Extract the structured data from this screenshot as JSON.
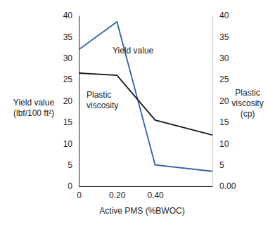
{
  "chart_data": {
    "type": "line",
    "xlabel": "Active PMS (%BWOC)",
    "ylabel": [
      "Yield value",
      "(lbf/100 ft²)"
    ],
    "y2label": [
      "Plastic",
      "viscosity",
      "(cp)"
    ],
    "x": [
      0,
      0.2,
      0.4,
      0.7
    ],
    "xlim": [
      0,
      0.7
    ],
    "xticks": [
      {
        "value": 0,
        "label": "0"
      },
      {
        "value": 0.2,
        "label": "0.20"
      },
      {
        "value": 0.4,
        "label": "0.40"
      }
    ],
    "ylim": [
      0,
      40
    ],
    "yticks": [
      0,
      5,
      10,
      15,
      20,
      25,
      30,
      35,
      40
    ],
    "y2lim": [
      0,
      40
    ],
    "y2ticks": [
      {
        "value": 0,
        "label": "0.00"
      },
      5,
      10,
      15,
      20,
      25,
      30,
      35,
      40
    ],
    "series": [
      {
        "name": "Yield value",
        "color": "#2f5fa8",
        "values": [
          32,
          38.5,
          5,
          3.5
        ]
      },
      {
        "name": "Plastic viscosity",
        "color": "#1a1a1a",
        "axis": "y2",
        "values": [
          26.5,
          26,
          15.5,
          12
        ]
      }
    ]
  }
}
